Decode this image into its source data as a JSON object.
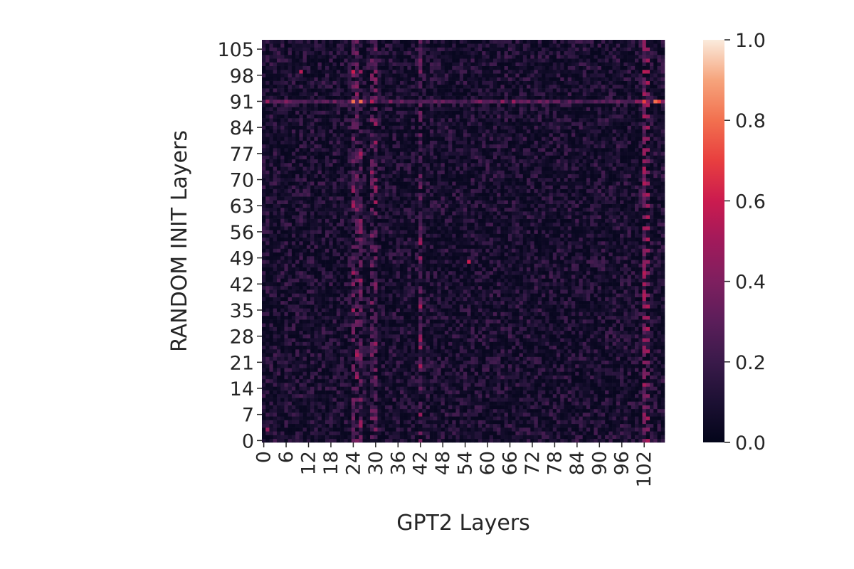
{
  "chart_data": {
    "type": "heatmap",
    "title": "",
    "xlabel": "GPT2 Layers",
    "ylabel": "RANDOM INIT Layers",
    "n_cols": 108,
    "n_rows": 108,
    "x_ticks": [
      "0",
      "6",
      "12",
      "18",
      "24",
      "30",
      "36",
      "42",
      "48",
      "54",
      "60",
      "66",
      "72",
      "78",
      "84",
      "90",
      "96",
      "102"
    ],
    "x_tick_values": [
      0,
      6,
      12,
      18,
      24,
      30,
      36,
      42,
      48,
      54,
      60,
      66,
      72,
      78,
      84,
      90,
      96,
      102
    ],
    "y_ticks": [
      "0",
      "7",
      "14",
      "21",
      "28",
      "35",
      "42",
      "49",
      "56",
      "63",
      "70",
      "77",
      "84",
      "91",
      "98",
      "105"
    ],
    "y_tick_values": [
      0,
      7,
      14,
      21,
      28,
      35,
      42,
      49,
      56,
      63,
      70,
      77,
      84,
      91,
      98,
      105
    ],
    "colorbar": {
      "colormap": "rocket",
      "vmin": 0.0,
      "vmax": 1.0,
      "ticks": [
        "0.0",
        "0.2",
        "0.4",
        "0.6",
        "0.8",
        "1.0"
      ],
      "tick_values": [
        0.0,
        0.2,
        0.4,
        0.6,
        0.8,
        1.0
      ]
    },
    "value_summary": {
      "typical_range": [
        0.0,
        0.3
      ],
      "bright_columns": [
        24,
        25,
        26,
        29,
        30,
        42,
        102
      ],
      "bright_rows": [
        91
      ],
      "max_observed": 0.8,
      "hotspots": [
        {
          "x": 102,
          "y": 91,
          "value": 0.7
        },
        {
          "x": 105,
          "y": 91,
          "value": 0.8
        },
        {
          "x": 106,
          "y": 91,
          "value": 0.7
        },
        {
          "x": 24,
          "y": 91,
          "value": 0.8
        },
        {
          "x": 26,
          "y": 91,
          "value": 0.8
        },
        {
          "x": 29,
          "y": 91,
          "value": 0.55
        },
        {
          "x": 24,
          "y": 99,
          "value": 0.6
        },
        {
          "x": 102,
          "y": 99,
          "value": 0.55
        },
        {
          "x": 10,
          "y": 99,
          "value": 0.55
        },
        {
          "x": 55,
          "y": 48,
          "value": 0.6
        },
        {
          "x": 1,
          "y": 3,
          "value": 0.45
        }
      ]
    }
  }
}
